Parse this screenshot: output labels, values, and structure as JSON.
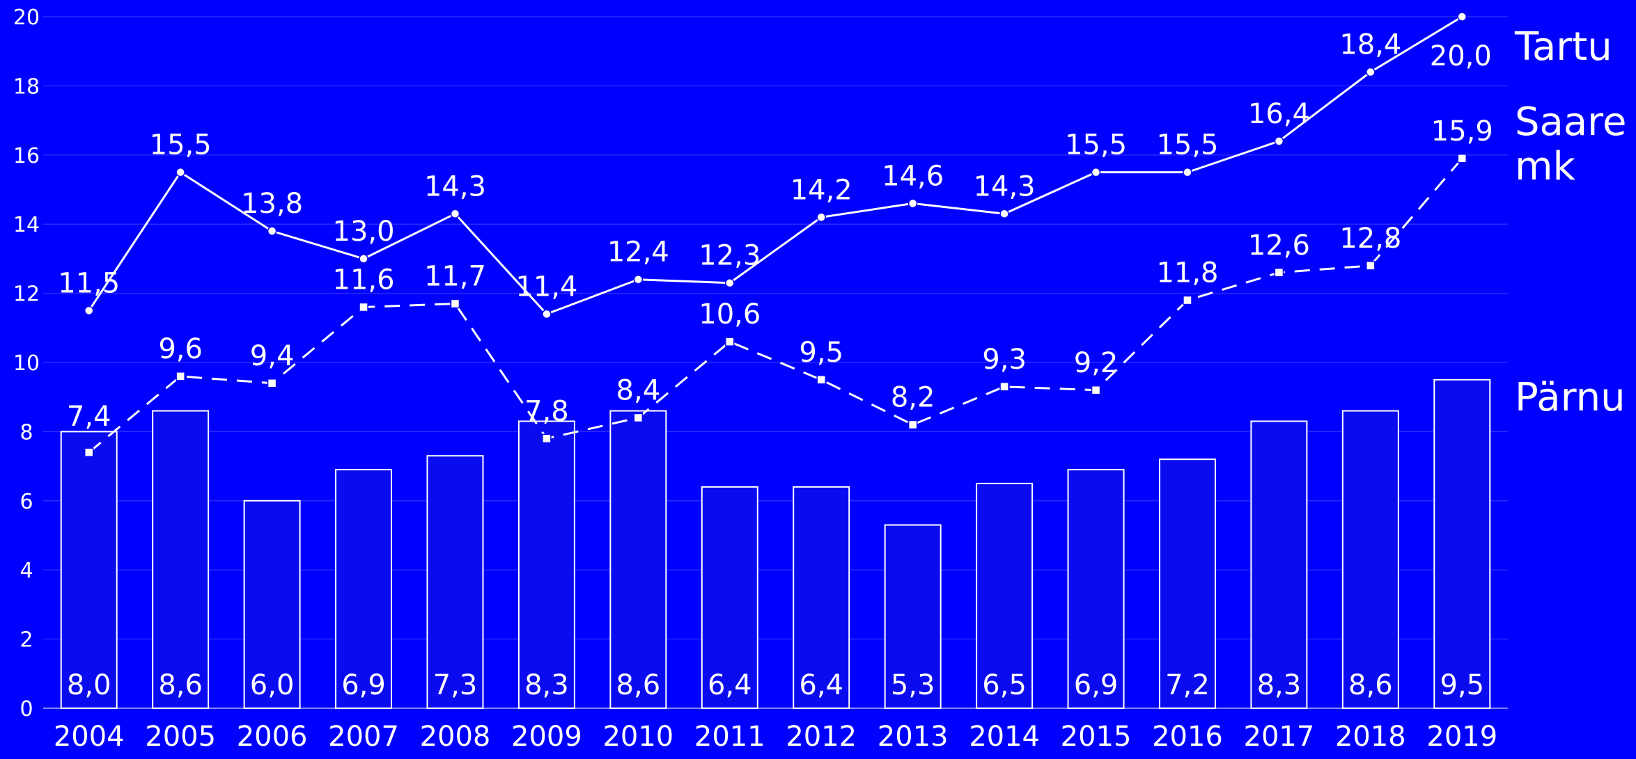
{
  "chart_data": {
    "type": "bar",
    "categories": [
      "2004",
      "2005",
      "2006",
      "2007",
      "2008",
      "2009",
      "2010",
      "2011",
      "2012",
      "2013",
      "2014",
      "2015",
      "2016",
      "2017",
      "2018",
      "2019"
    ],
    "ylim": [
      0,
      20
    ],
    "yticks": [
      0,
      2,
      4,
      6,
      8,
      10,
      12,
      14,
      16,
      18,
      20
    ],
    "grid": true,
    "series": [
      {
        "name": "Pärnu",
        "type": "bar",
        "values": [
          8.0,
          8.6,
          6.0,
          6.9,
          7.3,
          8.3,
          8.6,
          6.4,
          6.4,
          5.3,
          6.5,
          6.9,
          7.2,
          8.3,
          8.6,
          9.5
        ],
        "labels": [
          "8,0",
          "8,6",
          "6,0",
          "6,9",
          "7,3",
          "8,3",
          "8,6",
          "6,4",
          "6,4",
          "5,3",
          "6,5",
          "6,9",
          "7,2",
          "8,3",
          "8,6",
          "9,5"
        ]
      },
      {
        "name": "Tartu",
        "type": "line",
        "style": "solid",
        "values": [
          11.5,
          15.5,
          13.8,
          13.0,
          14.3,
          11.4,
          12.4,
          12.3,
          14.2,
          14.6,
          14.3,
          15.5,
          15.5,
          16.4,
          18.4,
          20.0
        ],
        "labels": [
          "11,5",
          "15,5",
          "13,8",
          "13,0",
          "14,3",
          "11,4",
          "12,4",
          "12,3",
          "14,2",
          "14,6",
          "14,3",
          "15,5",
          "15,5",
          "16,4",
          "18,4",
          "20,0"
        ]
      },
      {
        "name": "Saare mk",
        "name_lines": [
          "Saare",
          "mk"
        ],
        "type": "line",
        "style": "dashed",
        "values": [
          7.4,
          9.6,
          9.4,
          11.6,
          11.7,
          7.8,
          8.4,
          10.6,
          9.5,
          8.2,
          9.3,
          9.2,
          11.8,
          12.6,
          12.8,
          15.9
        ],
        "labels": [
          "7,4",
          "9,6",
          "9,4",
          "11,6",
          "11,7",
          "7,8",
          "8,4",
          "10,6",
          "9,5",
          "8,2",
          "9,3",
          "9,2",
          "11,8",
          "12,6",
          "12,8",
          "15,9"
        ]
      }
    ],
    "colors": {
      "background": "#0000ff",
      "bar_fill": "#0b0bf0",
      "foreground": "#ffffff",
      "grid": "#2a2aff"
    }
  }
}
